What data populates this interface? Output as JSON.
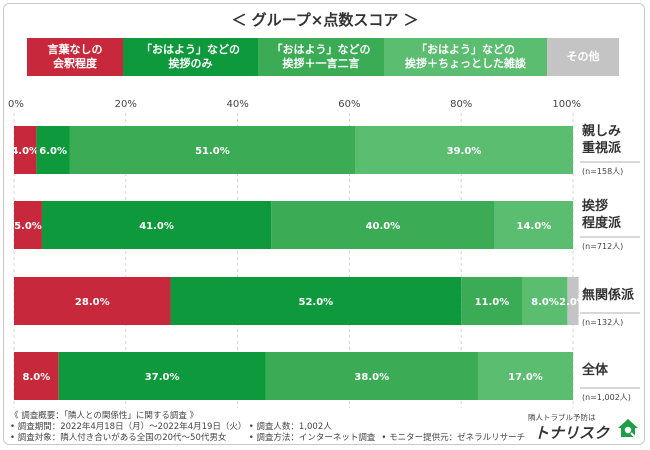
{
  "chart_data": {
    "type": "bar",
    "orientation": "horizontal",
    "stacked": true,
    "title": "＜ グループ×点数スコア ＞",
    "xlim": [
      0,
      100
    ],
    "x_ticks": [
      "0%",
      "20%",
      "40%",
      "60%",
      "80%",
      "100%"
    ],
    "legend_position": "top",
    "categories": [
      {
        "label": "親しみ\n重視派",
        "n": "(n=158人)"
      },
      {
        "label": "挨拶\n程度派",
        "n": "(n=712人)"
      },
      {
        "label": "無関係派",
        "n": "(n=132人)"
      },
      {
        "label": "全体",
        "n": "(n=1,002人)"
      }
    ],
    "series": [
      {
        "name": "言葉なしの\n会釈程度",
        "color": "#c8283b",
        "values": [
          4.0,
          5.0,
          28.0,
          8.0
        ],
        "labels": [
          "4.0%",
          "5.0%",
          "28.0%",
          "8.0%"
        ]
      },
      {
        "name": "「おはよう」などの\n挨拶のみ",
        "color": "#0e9a3c",
        "values": [
          6.0,
          41.0,
          52.0,
          37.0
        ],
        "labels": [
          "6.0%",
          "41.0%",
          "52.0%",
          "37.0%"
        ]
      },
      {
        "name": "「おはよう」などの\n挨拶＋一言二言",
        "color": "#3bab55",
        "values": [
          51.0,
          40.0,
          11.0,
          38.0
        ],
        "labels": [
          "51.0%",
          "40.0%",
          "11.0%",
          "38.0%"
        ]
      },
      {
        "name": "「おはよう」などの\n挨拶＋ちょっとした雑談",
        "color": "#5bbd6f",
        "values": [
          39.0,
          14.0,
          8.0,
          17.0
        ],
        "labels": [
          "39.0%",
          "14.0%",
          "8.0%",
          "17.0%"
        ]
      },
      {
        "name": "その他",
        "color": "#c4c4c4",
        "values": [
          0,
          0,
          2.0,
          0
        ],
        "labels": [
          "",
          "",
          "2.0%",
          ""
        ]
      }
    ]
  },
  "footer": {
    "summary": "《 調査概要：「隣人との関係性」に関する調査 》",
    "period": "• 調査期間：2022年4月18日（月）〜2022年4月19日（火）",
    "count": "• 調査人数：1,002人",
    "target": "• 調査対象：隣人付き合いがある全国の20代〜50代男女",
    "method": "• 調査方法：インターネット調査",
    "provider": "• モニター提供元：ゼネラルリサーチ"
  },
  "logo": {
    "subtitle": "隣人トラブル予防は",
    "name": "トナリスク",
    "icon": "house-magnifier-icon"
  }
}
